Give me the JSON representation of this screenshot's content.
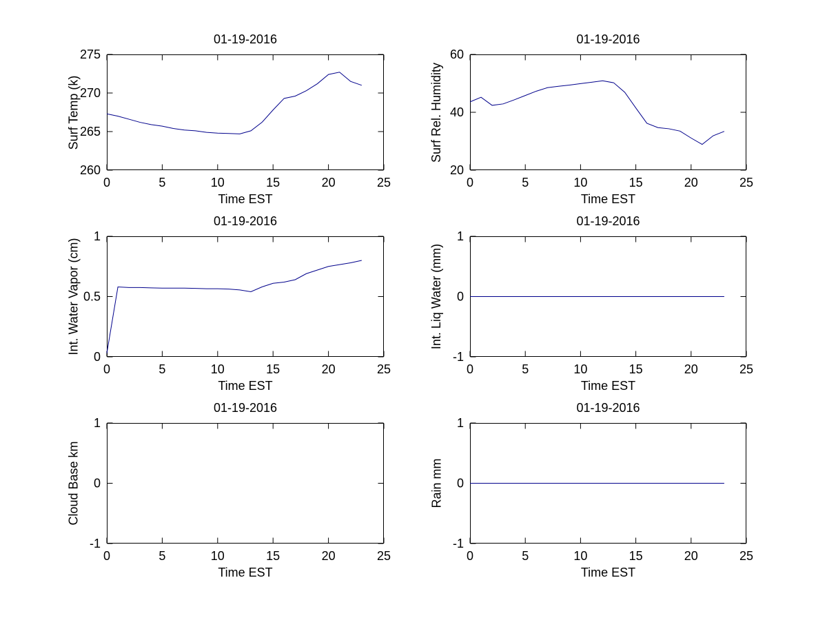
{
  "figure": {
    "background": "#ffffff",
    "axes_color": "#000000"
  },
  "chart_data": [
    {
      "id": "surf-temp",
      "type": "line",
      "title": "01-19-2016",
      "xlabel": "Time EST",
      "ylabel": "Surf Temp (k)",
      "xlim": [
        0,
        25
      ],
      "ylim": [
        260,
        275
      ],
      "xticks": [
        0,
        5,
        10,
        15,
        20,
        25
      ],
      "yticks": [
        260,
        265,
        270,
        275
      ],
      "grid": false,
      "legend": null,
      "line_color": "#00008B",
      "x": [
        0,
        1,
        2,
        3,
        4,
        5,
        6,
        7,
        8,
        9,
        10,
        11,
        12,
        13,
        14,
        15,
        16,
        17,
        18,
        19,
        20,
        21,
        22,
        23
      ],
      "y": [
        267.3,
        267.0,
        266.6,
        266.2,
        265.9,
        265.7,
        265.4,
        265.2,
        265.1,
        264.9,
        264.8,
        264.75,
        264.7,
        265.1,
        266.2,
        267.8,
        269.3,
        269.6,
        270.3,
        271.2,
        272.4,
        272.7,
        271.5,
        271.0
      ]
    },
    {
      "id": "surf-rel-humidity",
      "type": "line",
      "title": "01-19-2016",
      "xlabel": "Time EST",
      "ylabel": "Surf Rel. Humidity",
      "xlim": [
        0,
        25
      ],
      "ylim": [
        20,
        60
      ],
      "xticks": [
        0,
        5,
        10,
        15,
        20,
        25
      ],
      "yticks": [
        20,
        40,
        60
      ],
      "grid": false,
      "legend": null,
      "line_color": "#00008B",
      "x": [
        0,
        1,
        2,
        3,
        4,
        5,
        6,
        7,
        8,
        9,
        10,
        11,
        12,
        13,
        14,
        15,
        16,
        17,
        18,
        19,
        20,
        21,
        22,
        23
      ],
      "y": [
        43.6,
        45.2,
        42.4,
        42.9,
        44.3,
        45.8,
        47.3,
        48.5,
        49.0,
        49.4,
        49.9,
        50.4,
        50.9,
        50.2,
        46.9,
        41.5,
        36.2,
        34.7,
        34.3,
        33.5,
        31.1,
        28.9,
        31.9,
        33.4
      ]
    },
    {
      "id": "int-water-vapor",
      "type": "line",
      "title": "01-19-2016",
      "xlabel": "Time EST",
      "ylabel": "Int. Water Vapor (cm)",
      "xlim": [
        0,
        25
      ],
      "ylim": [
        0,
        1
      ],
      "xticks": [
        0,
        5,
        10,
        15,
        20,
        25
      ],
      "yticks": [
        0,
        0.5,
        1
      ],
      "grid": false,
      "legend": null,
      "line_color": "#00008B",
      "x": [
        0,
        1,
        2,
        3,
        4,
        5,
        6,
        7,
        8,
        9,
        10,
        11,
        12,
        13,
        14,
        15,
        16,
        17,
        18,
        19,
        20,
        21,
        22,
        23
      ],
      "y": [
        0.03,
        0.58,
        0.575,
        0.575,
        0.572,
        0.57,
        0.57,
        0.57,
        0.568,
        0.565,
        0.565,
        0.562,
        0.555,
        0.54,
        0.58,
        0.61,
        0.62,
        0.64,
        0.69,
        0.72,
        0.75,
        0.765,
        0.78,
        0.8
      ]
    },
    {
      "id": "int-liq-water",
      "type": "line",
      "title": "01-19-2016",
      "xlabel": "Time EST",
      "ylabel": "Int. Liq Water (mm)",
      "xlim": [
        0,
        25
      ],
      "ylim": [
        -1,
        1
      ],
      "xticks": [
        0,
        5,
        10,
        15,
        20,
        25
      ],
      "yticks": [
        -1,
        0,
        1
      ],
      "grid": false,
      "legend": null,
      "line_color": "#00008B",
      "x": [
        0,
        1,
        2,
        3,
        4,
        5,
        6,
        7,
        8,
        9,
        10,
        11,
        12,
        13,
        14,
        15,
        16,
        17,
        18,
        19,
        20,
        21,
        22,
        23
      ],
      "y": [
        0,
        0,
        0,
        0,
        0,
        0,
        0,
        0,
        0,
        0,
        0,
        0,
        0,
        0,
        0,
        0,
        0,
        0,
        0,
        0,
        0,
        0,
        0,
        0
      ]
    },
    {
      "id": "cloud-base",
      "type": "line",
      "title": "01-19-2016",
      "xlabel": "Time EST",
      "ylabel": "Cloud Base km",
      "xlim": [
        0,
        25
      ],
      "ylim": [
        -1,
        1
      ],
      "xticks": [
        0,
        5,
        10,
        15,
        20,
        25
      ],
      "yticks": [
        -1,
        0,
        1
      ],
      "grid": false,
      "legend": null,
      "line_color": "#00008B",
      "x": [],
      "y": []
    },
    {
      "id": "rain",
      "type": "line",
      "title": "01-19-2016",
      "xlabel": "Time EST",
      "ylabel": "Rain mm",
      "xlim": [
        0,
        25
      ],
      "ylim": [
        -1,
        1
      ],
      "xticks": [
        0,
        5,
        10,
        15,
        20,
        25
      ],
      "yticks": [
        -1,
        0,
        1
      ],
      "grid": false,
      "legend": null,
      "line_color": "#00008B",
      "x": [
        0,
        1,
        2,
        3,
        4,
        5,
        6,
        7,
        8,
        9,
        10,
        11,
        12,
        13,
        14,
        15,
        16,
        17,
        18,
        19,
        20,
        21,
        22,
        23
      ],
      "y": [
        0,
        0,
        0,
        0,
        0,
        0,
        0,
        0,
        0,
        0,
        0,
        0,
        0,
        0,
        0,
        0,
        0,
        0,
        0,
        0,
        0,
        0,
        0,
        0
      ]
    }
  ]
}
